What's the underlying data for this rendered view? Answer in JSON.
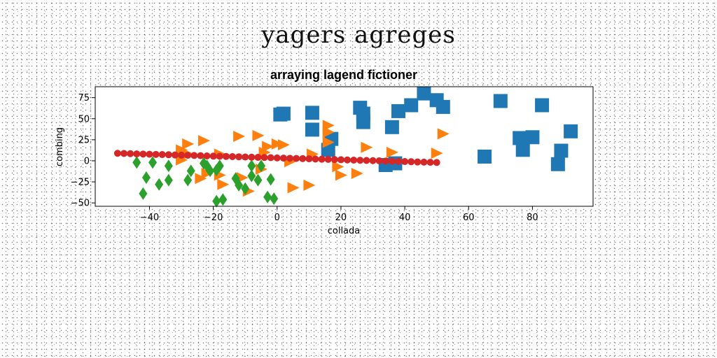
{
  "figure": {
    "suptitle": "yagers agreges"
  },
  "chart_data": {
    "type": "scatter",
    "title": "arraying lagend fictioner",
    "xlabel": "collada",
    "ylabel": "combing",
    "xlim": [
      -57,
      99
    ],
    "ylim": [
      -54,
      88
    ],
    "xticks": [
      -40,
      -20,
      0,
      20,
      40,
      60,
      80
    ],
    "yticks": [
      -50,
      -25,
      0,
      25,
      50,
      75
    ],
    "grid": false,
    "legend": "none",
    "series": [
      {
        "marker": "square",
        "color": "#1f77b4",
        "points": [
          [
            1,
            55
          ],
          [
            2,
            56
          ],
          [
            11,
            57
          ],
          [
            11,
            37
          ],
          [
            17,
            26
          ],
          [
            16,
            13
          ],
          [
            26,
            63
          ],
          [
            27,
            56
          ],
          [
            27,
            46
          ],
          [
            36,
            40
          ],
          [
            38,
            59
          ],
          [
            42,
            66
          ],
          [
            46,
            80
          ],
          [
            50,
            72
          ],
          [
            52,
            64
          ],
          [
            34,
            -5
          ],
          [
            37,
            -3
          ],
          [
            65,
            5
          ],
          [
            70,
            71
          ],
          [
            76,
            27
          ],
          [
            77,
            13
          ],
          [
            80,
            28
          ],
          [
            83,
            66
          ],
          [
            88,
            -4
          ],
          [
            89,
            12
          ],
          [
            92,
            35
          ]
        ]
      },
      {
        "marker": "triangle-right",
        "color": "#ff7f0e",
        "points": [
          [
            -30,
            13
          ],
          [
            -28,
            20
          ],
          [
            -23,
            24
          ],
          [
            -28,
            8
          ],
          [
            -30,
            1
          ],
          [
            -24,
            -21
          ],
          [
            -22,
            -15
          ],
          [
            -18,
            -17
          ],
          [
            -18,
            8
          ],
          [
            -17,
            -28
          ],
          [
            -12,
            29
          ],
          [
            -11,
            -20
          ],
          [
            -9,
            -36
          ],
          [
            -6,
            30
          ],
          [
            -5,
            -10
          ],
          [
            -4,
            10
          ],
          [
            -3,
            17
          ],
          [
            0,
            20
          ],
          [
            2,
            19
          ],
          [
            4,
            -1
          ],
          [
            5,
            -32
          ],
          [
            10,
            -29
          ],
          [
            11,
            8
          ],
          [
            16,
            42
          ],
          [
            16,
            34
          ],
          [
            16,
            22
          ],
          [
            19,
            -7
          ],
          [
            20,
            -17
          ],
          [
            25,
            -15
          ],
          [
            28,
            16
          ],
          [
            36,
            10
          ],
          [
            50,
            9
          ],
          [
            52,
            32
          ]
        ]
      },
      {
        "marker": "diamond",
        "color": "#2ca02c",
        "points": [
          [
            -44,
            -2
          ],
          [
            -42,
            -39
          ],
          [
            -41,
            -20
          ],
          [
            -39,
            -2
          ],
          [
            -37,
            -28
          ],
          [
            -34,
            -23
          ],
          [
            -34,
            -6
          ],
          [
            -28,
            -23
          ],
          [
            -27,
            -12
          ],
          [
            -23,
            -3
          ],
          [
            -22,
            -6
          ],
          [
            -21,
            -12
          ],
          [
            -19,
            -11
          ],
          [
            -19,
            -48
          ],
          [
            -18,
            -6
          ],
          [
            -17,
            -46
          ],
          [
            -13,
            -21
          ],
          [
            -12,
            -29
          ],
          [
            -10,
            -33
          ],
          [
            -8,
            -18
          ],
          [
            -8,
            -6
          ],
          [
            -6,
            -23
          ],
          [
            -5,
            -6
          ],
          [
            -3,
            -43
          ],
          [
            -2,
            -22
          ],
          [
            -1,
            -45
          ]
        ]
      },
      {
        "marker": "circle",
        "color": "#d62728",
        "points": [
          [
            -50,
            8.9
          ],
          [
            -48,
            8.7
          ],
          [
            -46,
            8.5
          ],
          [
            -44,
            8.2
          ],
          [
            -42,
            8.0
          ],
          [
            -40,
            7.8
          ],
          [
            -38,
            7.6
          ],
          [
            -36,
            7.4
          ],
          [
            -34,
            7.2
          ],
          [
            -32,
            6.9
          ],
          [
            -30,
            6.7
          ],
          [
            -28,
            6.5
          ],
          [
            -26,
            6.3
          ],
          [
            -24,
            6.1
          ],
          [
            -22,
            5.8
          ],
          [
            -20,
            5.6
          ],
          [
            -18,
            5.4
          ],
          [
            -16,
            5.2
          ],
          [
            -14,
            5.0
          ],
          [
            -12,
            4.8
          ],
          [
            -10,
            4.5
          ],
          [
            -8,
            4.3
          ],
          [
            -6,
            4.1
          ],
          [
            -4,
            3.9
          ],
          [
            -2,
            3.7
          ],
          [
            0,
            3.4
          ],
          [
            2,
            3.2
          ],
          [
            4,
            3.0
          ],
          [
            6,
            2.8
          ],
          [
            8,
            2.6
          ],
          [
            10,
            2.4
          ],
          [
            12,
            2.1
          ],
          [
            14,
            1.9
          ],
          [
            16,
            1.7
          ],
          [
            18,
            1.5
          ],
          [
            20,
            1.3
          ],
          [
            22,
            1.0
          ],
          [
            24,
            0.8
          ],
          [
            26,
            0.6
          ],
          [
            28,
            0.4
          ],
          [
            30,
            0.2
          ],
          [
            32,
            0.0
          ],
          [
            34,
            -0.3
          ],
          [
            36,
            -0.5
          ],
          [
            38,
            -0.7
          ],
          [
            40,
            -0.9
          ],
          [
            42,
            -1.1
          ],
          [
            44,
            -1.4
          ],
          [
            46,
            -1.6
          ],
          [
            48,
            -1.8
          ],
          [
            50,
            -2.0
          ]
        ]
      }
    ]
  }
}
